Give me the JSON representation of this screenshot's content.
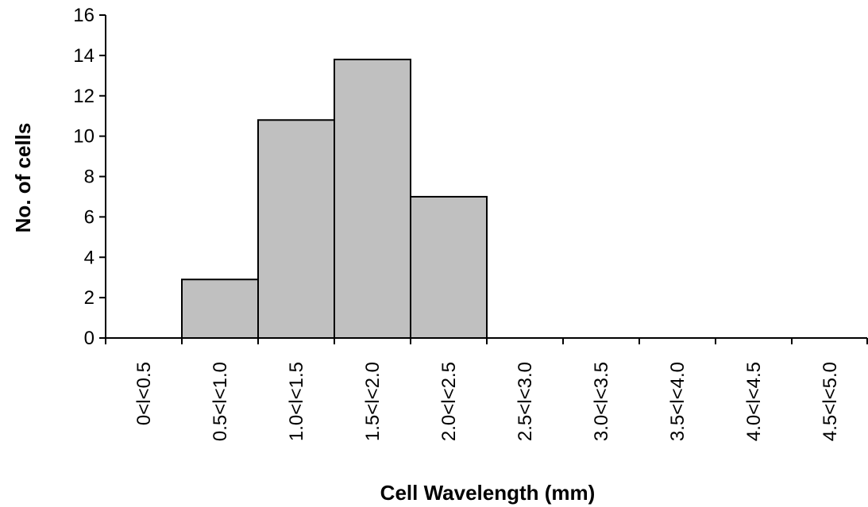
{
  "chart_data": {
    "type": "bar",
    "title": "",
    "xlabel": "Cell Wavelength (mm)",
    "ylabel": "No. of cells",
    "categories": [
      "0<l<0.5",
      "0.5<l<1.0",
      "1.0<l<1.5",
      "1.5<l<2.0",
      "2.0<l<2.5",
      "2.5<l<3.0",
      "3.0<l<3.5",
      "3.5<l<4.0",
      "4.0<l<4.5",
      "4.5<l<5.0"
    ],
    "values": [
      0,
      2.9,
      10.8,
      13.8,
      7.0,
      0,
      0,
      0,
      0,
      0
    ],
    "ylim": [
      0,
      16
    ],
    "yticks": [
      0,
      2,
      4,
      6,
      8,
      10,
      12,
      14,
      16
    ],
    "grid": false,
    "legend": "none",
    "colors": {
      "bar_fill": "#c0c0c0",
      "bar_stroke": "#000000"
    }
  }
}
